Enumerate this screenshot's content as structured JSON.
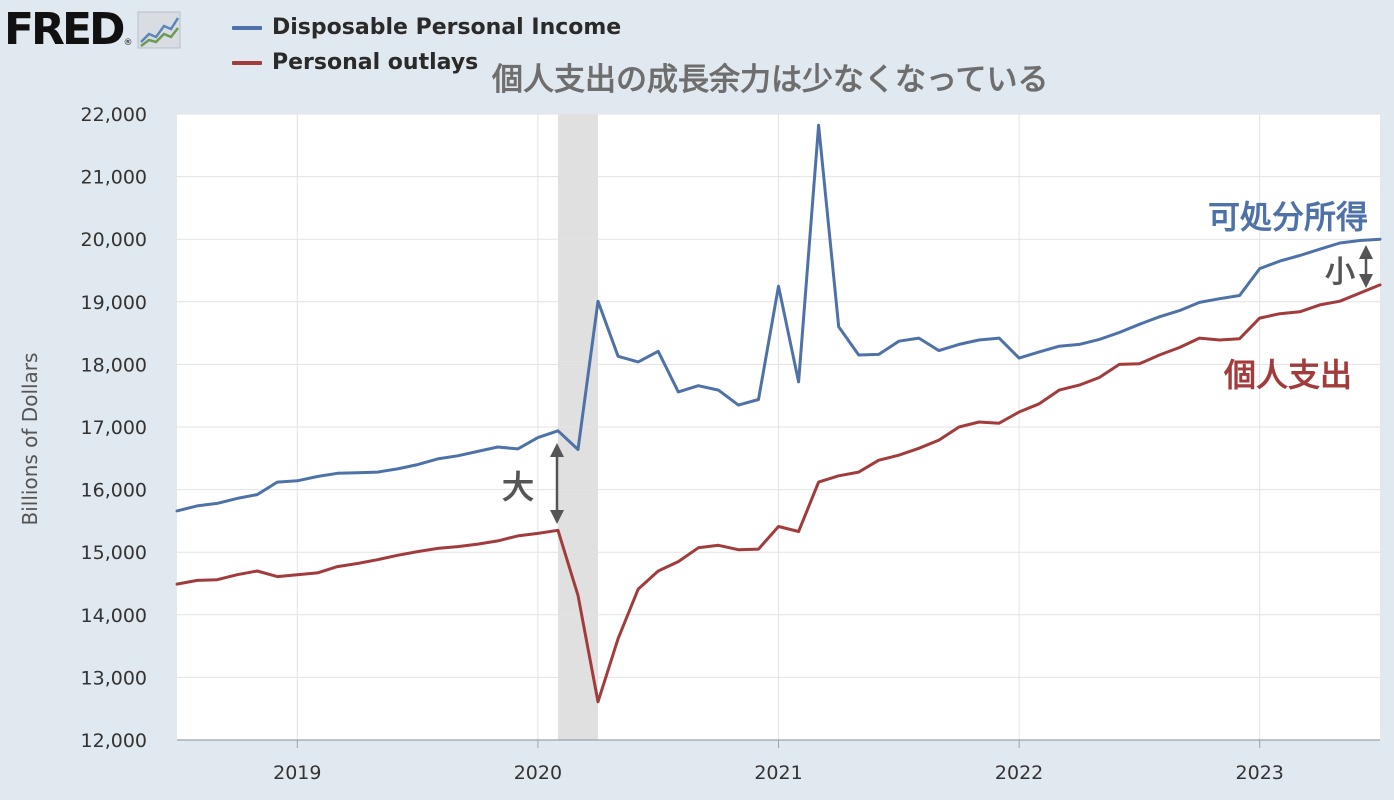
{
  "header": {
    "logo_text": "FRED",
    "logo_reg": "®",
    "headline": "個人支出の成長余力は少なくなっている"
  },
  "legend": [
    {
      "label": "Disposable Personal Income",
      "color": "#4e72a7"
    },
    {
      "label": "Personal outlays",
      "color": "#a23b3b"
    }
  ],
  "annotations": {
    "income_label": "可処分所得",
    "outlays_label": "個人支出",
    "gap_large": "大",
    "gap_small": "小"
  },
  "colors": {
    "income": "#4e72a7",
    "outlays": "#a23b3b",
    "recession": "#e0e0e0",
    "gap_arrow": "#555555",
    "income_text": "#4e72a7",
    "outlays_text": "#a23b3b",
    "gap_text": "#555555"
  },
  "chart_data": {
    "type": "line",
    "ylabel": "Billions of Dollars",
    "ylim": [
      12000,
      22000
    ],
    "yticks": [
      12000,
      13000,
      14000,
      15000,
      16000,
      17000,
      18000,
      19000,
      20000,
      21000,
      22000
    ],
    "ytick_labels": [
      "12,000",
      "13,000",
      "14,000",
      "15,000",
      "16,000",
      "17,000",
      "18,000",
      "19,000",
      "20,000",
      "21,000",
      "22,000"
    ],
    "x_start": "2018-07",
    "x_end": "2023-07",
    "xticks": [
      {
        "date": "2019-01",
        "label": "2019"
      },
      {
        "date": "2020-01",
        "label": "2020"
      },
      {
        "date": "2021-01",
        "label": "2021"
      },
      {
        "date": "2022-01",
        "label": "2022"
      },
      {
        "date": "2023-01",
        "label": "2023"
      }
    ],
    "recession": {
      "start": "2020-02",
      "end": "2020-04"
    },
    "grid": true,
    "x": [
      "2018-07",
      "2018-08",
      "2018-09",
      "2018-10",
      "2018-11",
      "2018-12",
      "2019-01",
      "2019-02",
      "2019-03",
      "2019-04",
      "2019-05",
      "2019-06",
      "2019-07",
      "2019-08",
      "2019-09",
      "2019-10",
      "2019-11",
      "2019-12",
      "2020-01",
      "2020-02",
      "2020-03",
      "2020-04",
      "2020-05",
      "2020-06",
      "2020-07",
      "2020-08",
      "2020-09",
      "2020-10",
      "2020-11",
      "2020-12",
      "2021-01",
      "2021-02",
      "2021-03",
      "2021-04",
      "2021-05",
      "2021-06",
      "2021-07",
      "2021-08",
      "2021-09",
      "2021-10",
      "2021-11",
      "2021-12",
      "2022-01",
      "2022-02",
      "2022-03",
      "2022-04",
      "2022-05",
      "2022-06",
      "2022-07",
      "2022-08",
      "2022-09",
      "2022-10",
      "2022-11",
      "2022-12",
      "2023-01",
      "2023-02",
      "2023-03",
      "2023-04",
      "2023-05",
      "2023-06",
      "2023-07"
    ],
    "series": [
      {
        "name": "Disposable Personal Income",
        "values": [
          15660,
          15740,
          15780,
          15860,
          15920,
          16120,
          16140,
          16210,
          16260,
          16270,
          16280,
          16330,
          16400,
          16490,
          16540,
          16610,
          16680,
          16650,
          16830,
          16940,
          16640,
          19010,
          18130,
          18040,
          18210,
          17560,
          17660,
          17590,
          17350,
          17440,
          19250,
          17720,
          21820,
          18600,
          18150,
          18160,
          18370,
          18420,
          18220,
          18320,
          18390,
          18420,
          18100,
          18200,
          18290,
          18320,
          18400,
          18510,
          18640,
          18760,
          18860,
          18990,
          19050,
          19100,
          19530,
          19650,
          19740,
          19840,
          19940,
          19980,
          20000
        ]
      },
      {
        "name": "Personal outlays",
        "values": [
          14490,
          14550,
          14560,
          14640,
          14700,
          14610,
          14640,
          14670,
          14770,
          14820,
          14880,
          14950,
          15010,
          15060,
          15090,
          15130,
          15180,
          15260,
          15300,
          15350,
          14310,
          12610,
          13620,
          14410,
          14700,
          14850,
          15070,
          15110,
          15040,
          15050,
          15410,
          15330,
          16120,
          16220,
          16280,
          16470,
          16550,
          16660,
          16790,
          17000,
          17080,
          17060,
          17240,
          17370,
          17590,
          17670,
          17790,
          18000,
          18010,
          18150,
          18270,
          18420,
          18390,
          18410,
          18740,
          18810,
          18840,
          18950,
          19010,
          19140,
          19270
        ]
      }
    ]
  }
}
